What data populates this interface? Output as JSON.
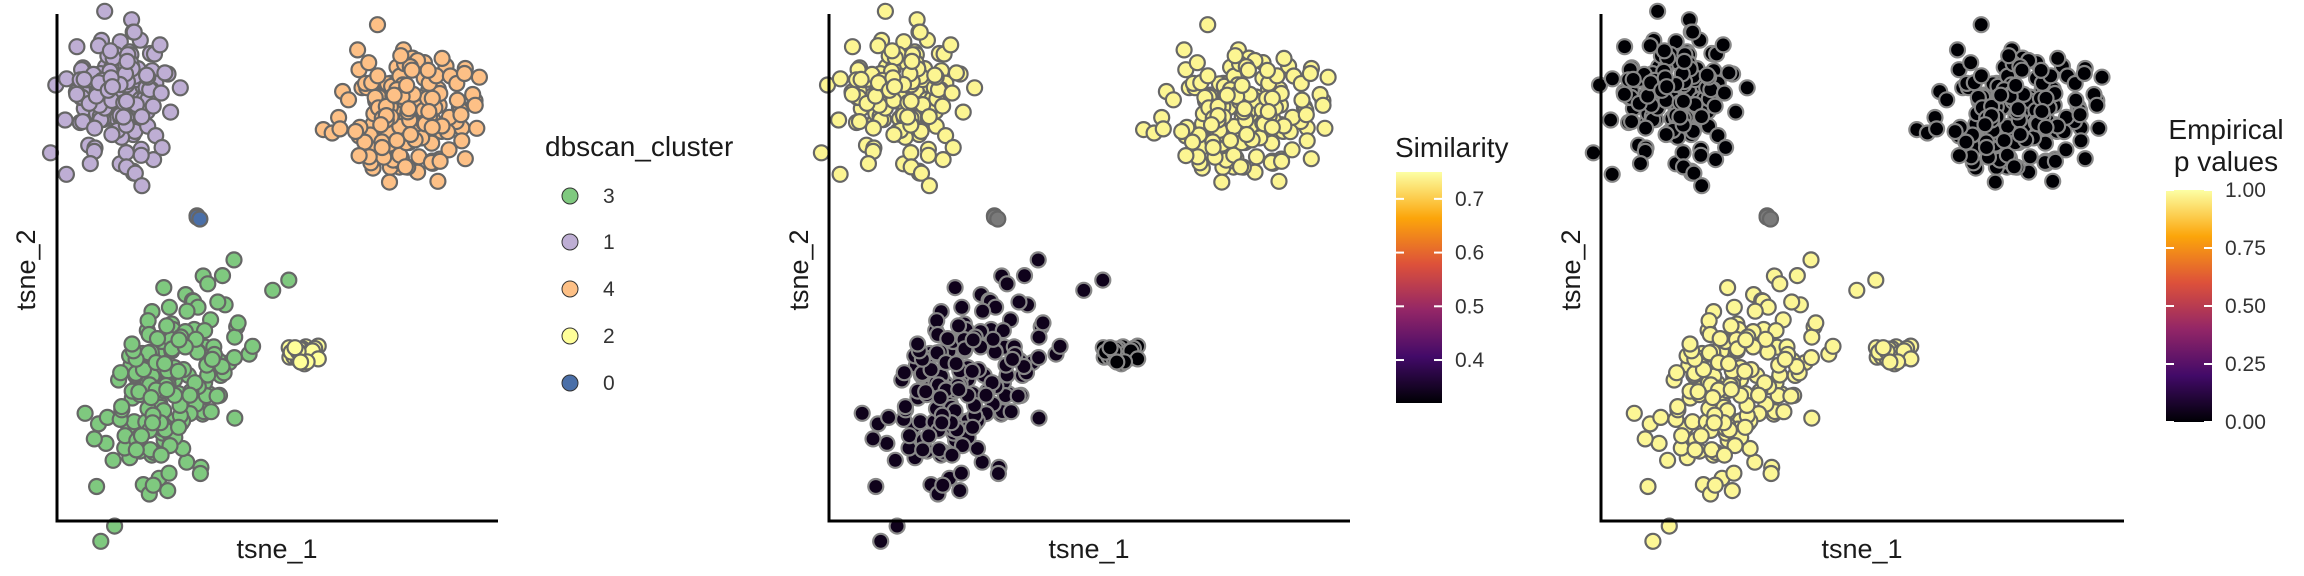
{
  "colors": {
    "cluster_0": "#4a6fa8",
    "cluster_1": "#beaed4",
    "cluster_2": "#ffff99",
    "cluster_3": "#7fc97f",
    "cluster_4": "#fdc086",
    "point_outline": "#666666",
    "noise_grey": "#7a7a7a"
  },
  "chart_data": [
    {
      "type": "scatter",
      "xlabel": "tsne_1",
      "ylabel": "tsne_2",
      "color_by": "dbscan_cluster",
      "legend": {
        "title": "dbscan_cluster",
        "placement": "right",
        "entries": [
          {
            "label": "3",
            "color": "#7fc97f"
          },
          {
            "label": "1",
            "color": "#beaed4"
          },
          {
            "label": "4",
            "color": "#fdc086"
          },
          {
            "label": "2",
            "color": "#ffff99"
          },
          {
            "label": "0",
            "color": "#4a6fa8"
          }
        ]
      },
      "clusters": [
        {
          "id": "1",
          "center": [
            -7.2,
            6.4
          ],
          "spread": [
            1.4,
            1.55
          ],
          "n": 170,
          "color": "#beaed4"
        },
        {
          "id": "4",
          "center": [
            8.2,
            5.2
          ],
          "spread": [
            1.55,
            1.5
          ],
          "n": 200,
          "color": "#fdc086"
        },
        {
          "id": "0",
          "center": [
            -3.0,
            -0.1
          ],
          "spread": [
            0.07,
            0.12
          ],
          "n": 3,
          "color": "#4a6fa8"
        },
        {
          "id": "3",
          "center": [
            -4.5,
            -9.0
          ],
          "spread": [
            1.5,
            3.0
          ],
          "n": 190,
          "color": "#7fc97f"
        },
        {
          "id": "2",
          "center": [
            2.7,
            -7.3
          ],
          "spread": [
            0.5,
            0.3
          ],
          "n": 22,
          "color": "#ffff99"
        }
      ],
      "xlim": [
        -10.5,
        13.0
      ],
      "ylim": [
        -16.0,
        10.5
      ],
      "grid": false
    },
    {
      "type": "scatter",
      "xlabel": "tsne_1",
      "ylabel": "tsne_2",
      "color_by": "Similarity",
      "colorbar": {
        "title": "Similarity",
        "ticks": [
          "0.7",
          "0.6",
          "0.5",
          "0.4"
        ],
        "tick_values": [
          0.7,
          0.6,
          0.5,
          0.4
        ],
        "range": [
          0.32,
          0.75
        ],
        "palette": [
          "#000004",
          "#420a68",
          "#932667",
          "#dd513a",
          "#fca50a",
          "#fcffa4"
        ]
      },
      "clusters": [
        {
          "id": "1",
          "center": [
            -7.2,
            6.4
          ],
          "spread": [
            1.4,
            1.55
          ],
          "n": 170,
          "value": 0.74
        },
        {
          "id": "4",
          "center": [
            8.2,
            5.2
          ],
          "spread": [
            1.55,
            1.5
          ],
          "n": 200,
          "value": 0.74
        },
        {
          "id": "0",
          "center": [
            -3.0,
            -0.1
          ],
          "spread": [
            0.07,
            0.12
          ],
          "n": 3,
          "value": null
        },
        {
          "id": "3",
          "center": [
            -4.5,
            -9.0
          ],
          "spread": [
            1.5,
            3.0
          ],
          "n": 190,
          "value": 0.34
        },
        {
          "id": "2",
          "center": [
            2.7,
            -7.3
          ],
          "spread": [
            0.5,
            0.3
          ],
          "n": 22,
          "value": 0.32
        }
      ],
      "xlim": [
        -10.5,
        13.0
      ],
      "ylim": [
        -16.0,
        10.5
      ],
      "grid": false
    },
    {
      "type": "scatter",
      "xlabel": "tsne_1",
      "ylabel": "tsne_2",
      "color_by": "Empirical p values",
      "colorbar": {
        "title_lines": [
          "Empirical",
          "p values"
        ],
        "ticks": [
          "1.00",
          "0.75",
          "0.50",
          "0.25",
          "0.00"
        ],
        "tick_values": [
          1.0,
          0.75,
          0.5,
          0.25,
          0.0
        ],
        "range": [
          0.0,
          1.0
        ],
        "palette": [
          "#000004",
          "#420a68",
          "#932667",
          "#dd513a",
          "#fca50a",
          "#fcffa4"
        ]
      },
      "clusters": [
        {
          "id": "1",
          "center": [
            -7.2,
            6.4
          ],
          "spread": [
            1.4,
            1.55
          ],
          "n": 170,
          "value": 0.0
        },
        {
          "id": "4",
          "center": [
            8.2,
            5.2
          ],
          "spread": [
            1.55,
            1.5
          ],
          "n": 200,
          "value": 0.0
        },
        {
          "id": "0",
          "center": [
            -3.0,
            -0.1
          ],
          "spread": [
            0.07,
            0.12
          ],
          "n": 3,
          "value": null
        },
        {
          "id": "3",
          "center": [
            -4.5,
            -9.0
          ],
          "spread": [
            1.5,
            3.0
          ],
          "n": 190,
          "value": 0.98
        },
        {
          "id": "2",
          "center": [
            2.7,
            -7.3
          ],
          "spread": [
            0.5,
            0.3
          ],
          "n": 22,
          "value": 0.98
        }
      ],
      "xlim": [
        -10.5,
        13.0
      ],
      "ylim": [
        -16.0,
        10.5
      ],
      "grid": false
    }
  ]
}
